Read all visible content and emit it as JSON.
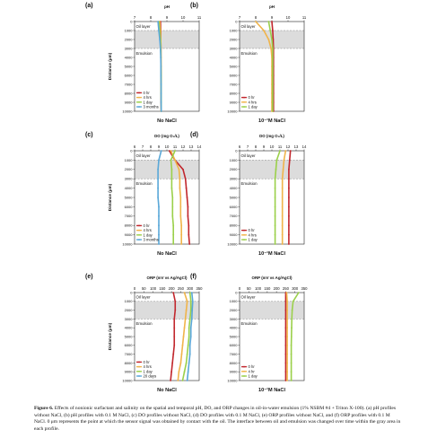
{
  "caption": {
    "lead": "Figure 6.",
    "text": " Effects of nonionic surfactant and salinity on the spatial and temporal pH, DO, and ORP changes in oil-in-water emulsion (1% NSBM #4 + Triton X-100). (a) pH profiles without NaCl, (b) pH profiles with 0.1 M NaCl, (c) DO profiles without NaCl, (d) DO profiles with 0.1 M NaCl, (e) ORP profiles without NaCl, and (f) ORP profiles with 0.1 M NaCl. 0 μm represents the point at which the sensor signal was obtained by contact with the oil. The interface between oil and emulsion was changed over time within the gray area in each profile."
  },
  "colors": {
    "0hr": "#c1272d",
    "4hrs": "#f0b44a",
    "1day": "#9bd04b",
    "long": "#5aa8d8",
    "band": "#dcdcdc"
  },
  "chart_data": [
    {
      "type": "line",
      "panel": "(a)",
      "title": "pH",
      "subtitle": "No NaCl",
      "ylabel": "Distance (μm)",
      "xlim": [
        7,
        11
      ],
      "xticks": [
        7,
        8,
        9,
        10,
        11
      ],
      "ylim": [
        0,
        10000
      ],
      "yticks": [
        0,
        1000,
        2000,
        3000,
        4000,
        5000,
        6000,
        7000,
        8000,
        9000,
        10000
      ],
      "band": [
        1000,
        3000
      ],
      "annotations": [
        {
          "text": "Oil layer",
          "y": 500
        },
        {
          "text": "Emulsion",
          "y": 3500
        }
      ],
      "legend": [
        "0 hr",
        "4 hrs",
        "1 day",
        "3 months"
      ],
      "series": [
        {
          "name": "0 hr",
          "key": "0hr",
          "x": [
            8.6,
            8.62,
            8.62,
            8.63,
            8.63,
            8.63,
            8.64,
            8.64,
            8.64,
            8.64,
            8.65
          ],
          "y": [
            0,
            1000,
            2000,
            3000,
            4000,
            5000,
            6000,
            7000,
            8000,
            9000,
            10000
          ]
        },
        {
          "name": "4 hrs",
          "key": "4hrs",
          "x": [
            8.55,
            8.6,
            8.62,
            8.63,
            8.63,
            8.64,
            8.64,
            8.64,
            8.64,
            8.65,
            8.65
          ],
          "y": [
            0,
            1000,
            2000,
            3000,
            4000,
            5000,
            6000,
            7000,
            8000,
            9000,
            10000
          ]
        },
        {
          "name": "1 day",
          "key": "1day",
          "x": [
            8.5,
            8.55,
            8.6,
            8.62,
            8.63,
            8.63,
            8.64,
            8.64,
            8.64,
            8.65,
            8.65
          ],
          "y": [
            0,
            1000,
            2000,
            3000,
            4000,
            5000,
            6000,
            7000,
            8000,
            9000,
            10000
          ]
        },
        {
          "name": "3 months",
          "key": "long",
          "x": [
            8.45,
            8.5,
            8.56,
            8.6,
            8.62,
            8.63,
            8.63,
            8.64,
            8.64,
            8.64,
            8.65
          ],
          "y": [
            0,
            1000,
            2000,
            3000,
            4000,
            5000,
            6000,
            7000,
            8000,
            9000,
            10000
          ]
        }
      ]
    },
    {
      "type": "line",
      "panel": "(b)",
      "title": "pH",
      "subtitle": "10⁻¹M NaCl",
      "ylabel": "",
      "xlim": [
        7,
        11
      ],
      "xticks": [
        7,
        8,
        9,
        10,
        11
      ],
      "ylim": [
        0,
        10000
      ],
      "yticks": [
        0,
        1000,
        2000,
        3000,
        4000,
        5000,
        6000,
        7000,
        8000,
        9000,
        10000
      ],
      "band": [
        1000,
        3000
      ],
      "annotations": [
        {
          "text": "Oil layer",
          "y": 500
        },
        {
          "text": "Emulsion",
          "y": 3500
        }
      ],
      "legend": [
        "0 hr",
        "4 hrs",
        "1 day"
      ],
      "series": [
        {
          "name": "0 hr",
          "key": "0hr",
          "x": [
            9.0,
            9.05,
            9.08,
            9.1,
            9.1,
            9.1,
            9.1,
            9.1,
            9.1,
            9.1,
            9.1
          ],
          "y": [
            0,
            1000,
            2000,
            3000,
            4000,
            5000,
            6000,
            7000,
            8000,
            9000,
            10000
          ]
        },
        {
          "name": "4 hrs",
          "key": "4hrs",
          "x": [
            8.0,
            8.5,
            8.8,
            8.95,
            9.0,
            9.0,
            9.0,
            9.0,
            9.0,
            9.0,
            9.0
          ],
          "y": [
            0,
            1000,
            2000,
            3000,
            4000,
            5000,
            6000,
            7000,
            8000,
            9000,
            10000
          ]
        },
        {
          "name": "1 day",
          "key": "1day",
          "x": [
            8.8,
            8.9,
            9.0,
            9.05,
            9.05,
            9.05,
            9.05,
            9.05,
            9.05,
            9.05,
            9.05
          ],
          "y": [
            0,
            1000,
            2000,
            3000,
            4000,
            5000,
            6000,
            7000,
            8000,
            9000,
            10000
          ]
        }
      ]
    },
    {
      "type": "line",
      "panel": "(c)",
      "title": "DO (mg O₂/L)",
      "subtitle": "No NaCl",
      "ylabel": "Distance (μm)",
      "xlim": [
        6,
        14
      ],
      "xticks": [
        6,
        7,
        8,
        9,
        10,
        11,
        12,
        13,
        14
      ],
      "ylim": [
        0,
        10000
      ],
      "yticks": [
        0,
        1000,
        2000,
        3000,
        4000,
        5000,
        6000,
        7000,
        8000,
        9000,
        10000
      ],
      "band": [
        1000,
        3000
      ],
      "annotations": [
        {
          "text": "Oil layer",
          "y": 500
        },
        {
          "text": "Emulsion",
          "y": 3500
        }
      ],
      "legend": [
        "0 hr",
        "4 hrs",
        "1 day",
        "3 months"
      ],
      "series": [
        {
          "name": "0 hr",
          "key": "0hr",
          "x": [
            10.3,
            11.0,
            12.0,
            12.3,
            12.4,
            12.5,
            12.6,
            12.6,
            12.7,
            12.7,
            12.8
          ],
          "y": [
            0,
            1000,
            2000,
            3000,
            4000,
            5000,
            6000,
            7000,
            8000,
            9000,
            10000
          ]
        },
        {
          "name": "4 hrs",
          "key": "4hrs",
          "x": [
            10.5,
            11.0,
            11.5,
            11.6,
            11.6,
            11.7,
            11.7,
            11.7,
            11.8,
            11.8,
            11.8
          ],
          "y": [
            0,
            1000,
            2000,
            3000,
            4000,
            5000,
            6000,
            7000,
            8000,
            9000,
            10000
          ]
        },
        {
          "name": "1 day",
          "key": "1day",
          "x": [
            11.0,
            10.5,
            10.6,
            10.6,
            10.6,
            10.7,
            10.7,
            10.7,
            10.8,
            10.8,
            10.8
          ],
          "y": [
            0,
            1000,
            2000,
            3000,
            4000,
            5000,
            6000,
            7000,
            8000,
            9000,
            10000
          ]
        },
        {
          "name": "3 months",
          "key": "long",
          "x": [
            9.3,
            9.0,
            8.9,
            8.9,
            8.9,
            8.9,
            9.0,
            9.0,
            9.0,
            9.0,
            9.0
          ],
          "y": [
            0,
            1000,
            2000,
            3000,
            4000,
            5000,
            6000,
            7000,
            8000,
            9000,
            10000
          ]
        }
      ]
    },
    {
      "type": "line",
      "panel": "(d)",
      "title": "DO (mg O₂/L)",
      "subtitle": "10⁻¹M NaCl",
      "ylabel": "",
      "xlim": [
        6,
        14
      ],
      "xticks": [
        6,
        7,
        8,
        9,
        10,
        11,
        12,
        13,
        14
      ],
      "ylim": [
        0,
        10000
      ],
      "yticks": [
        0,
        1000,
        2000,
        3000,
        4000,
        5000,
        6000,
        7000,
        8000,
        9000,
        10000
      ],
      "band": [
        1000,
        3000
      ],
      "annotations": [
        {
          "text": "Oil layer",
          "y": 500
        },
        {
          "text": "Emulsion",
          "y": 3500
        }
      ],
      "legend": [
        "0 hr",
        "4 hrs",
        "1 day"
      ],
      "series": [
        {
          "name": "0 hr",
          "key": "0hr",
          "x": [
            12.3,
            12.2,
            12.1,
            12.1,
            12.1,
            12.1,
            12.1,
            12.1,
            12.1,
            12.1,
            12.1
          ],
          "y": [
            0,
            1000,
            2000,
            3000,
            4000,
            5000,
            6000,
            7000,
            8000,
            9000,
            10000
          ]
        },
        {
          "name": "4 hrs",
          "key": "4hrs",
          "x": [
            11.7,
            11.5,
            11.4,
            11.3,
            11.3,
            11.3,
            11.3,
            11.3,
            11.3,
            11.3,
            11.3
          ],
          "y": [
            0,
            1000,
            2000,
            3000,
            4000,
            5000,
            6000,
            7000,
            8000,
            9000,
            10000
          ]
        },
        {
          "name": "1 day",
          "key": "1day",
          "x": [
            11.0,
            10.6,
            10.5,
            10.4,
            10.4,
            10.4,
            10.4,
            10.4,
            10.4,
            10.4,
            10.4
          ],
          "y": [
            0,
            1000,
            2000,
            3000,
            4000,
            5000,
            6000,
            7000,
            8000,
            9000,
            10000
          ]
        }
      ]
    },
    {
      "type": "line",
      "panel": "(e)",
      "title": "ORP (mV vs Ag/AgCl)",
      "subtitle": "No NaCl",
      "ylabel": "Distance (μm)",
      "xlim": [
        0,
        350
      ],
      "xticks": [
        0,
        50,
        100,
        150,
        200,
        250,
        300,
        350
      ],
      "ylim": [
        0,
        10000
      ],
      "yticks": [
        0,
        1000,
        2000,
        3000,
        4000,
        5000,
        6000,
        7000,
        8000,
        9000,
        10000
      ],
      "band": [
        1000,
        3000
      ],
      "annotations": [
        {
          "text": "Oil layer",
          "y": 500
        },
        {
          "text": "Emulsion",
          "y": 3500
        }
      ],
      "legend": [
        "0 hr",
        "4 hrs",
        "1 day",
        "20 days"
      ],
      "series": [
        {
          "name": "0 hr",
          "key": "0hr",
          "x": [
            210,
            220,
            220,
            215,
            215,
            215,
            215,
            210,
            205,
            200,
            195
          ],
          "y": [
            0,
            1000,
            2000,
            3000,
            4000,
            5000,
            6000,
            7000,
            8000,
            9000,
            10000
          ]
        },
        {
          "name": "4 hrs",
          "key": "4hrs",
          "x": [
            270,
            285,
            280,
            275,
            270,
            265,
            260,
            255,
            250,
            240,
            235
          ],
          "y": [
            0,
            1000,
            2000,
            3000,
            4000,
            5000,
            6000,
            7000,
            8000,
            9000,
            10000
          ]
        },
        {
          "name": "1 day",
          "key": "1day",
          "x": [
            300,
            305,
            305,
            300,
            295,
            295,
            290,
            285,
            280,
            270,
            260
          ],
          "y": [
            0,
            1000,
            2000,
            3000,
            4000,
            5000,
            6000,
            7000,
            8000,
            9000,
            10000
          ]
        },
        {
          "name": "20 days",
          "key": "long",
          "x": [
            310,
            315,
            312,
            310,
            305,
            305,
            300,
            300,
            295,
            290,
            285
          ],
          "y": [
            0,
            1000,
            2000,
            3000,
            4000,
            5000,
            6000,
            7000,
            8000,
            9000,
            10000
          ]
        }
      ]
    },
    {
      "type": "line",
      "panel": "(f)",
      "title": "ORP (mV vs Ag/AgCl)",
      "subtitle": "10⁻¹M NaCl",
      "ylabel": "",
      "xlim": [
        0,
        350
      ],
      "xticks": [
        0,
        50,
        100,
        150,
        200,
        250,
        300,
        350
      ],
      "ylim": [
        0,
        10000
      ],
      "yticks": [
        0,
        1000,
        2000,
        3000,
        4000,
        5000,
        6000,
        7000,
        8000,
        9000,
        10000
      ],
      "band": [
        1000,
        3000
      ],
      "annotations": [
        {
          "text": "Oil layer",
          "y": 500
        },
        {
          "text": "Emulsion",
          "y": 3500
        }
      ],
      "legend": [
        "0 hr",
        "4 hr",
        "1 day"
      ],
      "series": [
        {
          "name": "0 hr",
          "key": "0hr",
          "x": [
            250,
            250,
            250,
            250,
            250,
            250,
            250,
            250,
            250,
            250,
            250
          ],
          "y": [
            0,
            1000,
            2000,
            3000,
            4000,
            5000,
            6000,
            7000,
            8000,
            9000,
            10000
          ]
        },
        {
          "name": "4 hr",
          "key": "4hrs",
          "x": [
            255,
            258,
            258,
            258,
            258,
            258,
            258,
            258,
            258,
            258,
            258
          ],
          "y": [
            0,
            1000,
            2000,
            3000,
            4000,
            5000,
            6000,
            7000,
            8000,
            9000,
            10000
          ]
        },
        {
          "name": "1 day",
          "key": "1day",
          "x": [
            320,
            290,
            285,
            283,
            282,
            281,
            280,
            280,
            280,
            280,
            280
          ],
          "y": [
            0,
            1000,
            2000,
            3000,
            4000,
            5000,
            6000,
            7000,
            8000,
            9000,
            10000
          ]
        }
      ]
    }
  ]
}
